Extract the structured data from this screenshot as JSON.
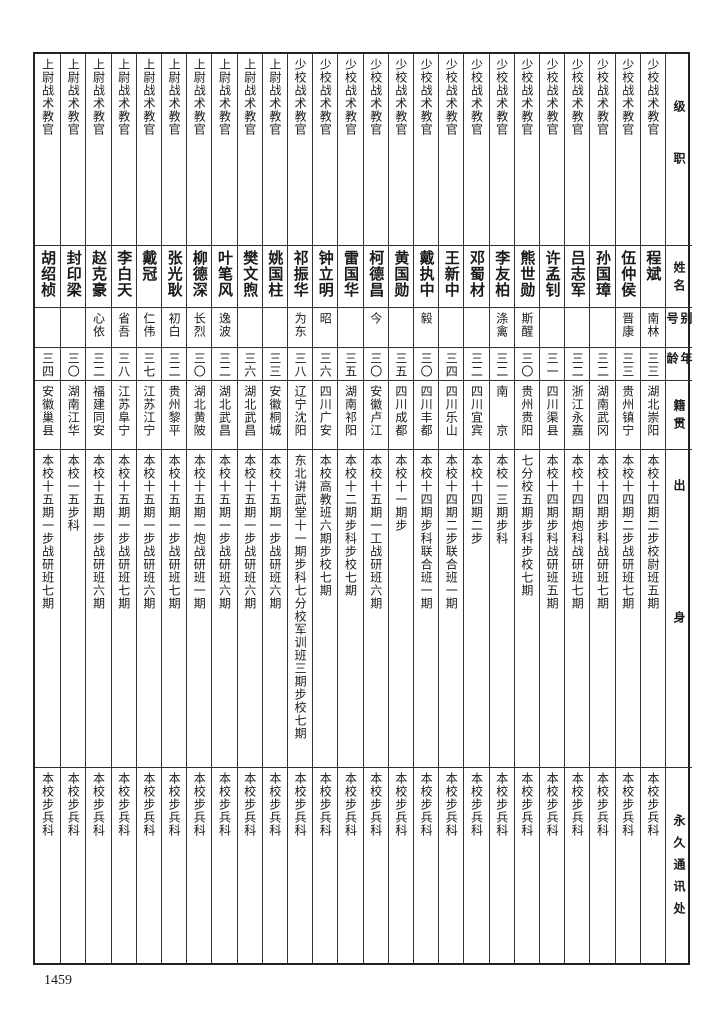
{
  "header": {
    "rank": "级职",
    "name": "姓名",
    "alias": "别号",
    "age": "年龄",
    "native": "籍贯",
    "origin": "出身",
    "address": "永久通讯处"
  },
  "rows": [
    {
      "rank": "少校战术教官",
      "name": "程斌",
      "alias": "南林",
      "age": "三三",
      "native": "湖北崇阳",
      "origin": "本校十四期二步校尉班五期",
      "address": "本校步兵科"
    },
    {
      "rank": "少校战术教官",
      "name": "伍仲侯",
      "alias": "晋康",
      "age": "三三",
      "native": "贵州镇宁",
      "origin": "本校十四期二步战研班七期",
      "address": "本校步兵科"
    },
    {
      "rank": "少校战术教官",
      "name": "孙国璋",
      "alias": "",
      "age": "三二",
      "native": "湖南武冈",
      "origin": "本校十四期步科战研班七期",
      "address": "本校步兵科"
    },
    {
      "rank": "少校战术教官",
      "name": "吕志军",
      "alias": "",
      "age": "三二",
      "native": "浙江永嘉",
      "origin": "本校十四期炮科战研班七期",
      "address": "本校步兵科"
    },
    {
      "rank": "少校战术教官",
      "name": "许孟钊",
      "alias": "",
      "age": "三一",
      "native": "四川渠县",
      "origin": "本校十四期步科战研班五期",
      "address": "本校步兵科"
    },
    {
      "rank": "少校战术教官",
      "name": "熊世勋",
      "alias": "斯醒",
      "age": "三〇",
      "native": "贵州贵阳",
      "origin": "七分校五期步科步校七期",
      "address": "本校步兵科"
    },
    {
      "rank": "少校战术教官",
      "name": "李友柏",
      "alias": "涤禽",
      "age": "三二",
      "native": "南　　京",
      "origin": "本校一三期步科",
      "address": "本校步兵科"
    },
    {
      "rank": "少校战术教官",
      "name": "邓蜀材",
      "alias": "",
      "age": "三二",
      "native": "四川宜宾",
      "origin": "本校十四期二步",
      "address": "本校步兵科"
    },
    {
      "rank": "少校战术教官",
      "name": "王新中",
      "alias": "",
      "age": "三四",
      "native": "四川乐山",
      "origin": "本校十四期二步联合班一期",
      "address": "本校步兵科"
    },
    {
      "rank": "少校战术教官",
      "name": "戴执中",
      "alias": "毅",
      "age": "三〇",
      "native": "四川丰都",
      "origin": "本校十四期步科联合班一期",
      "address": "本校步兵科"
    },
    {
      "rank": "少校战术教官",
      "name": "黄国勋",
      "alias": "",
      "age": "三五",
      "native": "四川成都",
      "origin": "本校十一期步",
      "address": "本校步兵科"
    },
    {
      "rank": "少校战术教官",
      "name": "柯德昌",
      "alias": "今",
      "age": "三〇",
      "native": "安徽卢江",
      "origin": "本校十五期一工战研班六期",
      "address": "本校步兵科"
    },
    {
      "rank": "少校战术教官",
      "name": "雷国华",
      "alias": "",
      "age": "三五",
      "native": "湖南祁阳",
      "origin": "本校十二期步科步校七期",
      "address": "本校步兵科"
    },
    {
      "rank": "少校战术教官",
      "name": "钟立明",
      "alias": "昭",
      "age": "三六",
      "native": "四川广安",
      "origin": "本校高教班六期步校七期",
      "address": "本校步兵科"
    },
    {
      "rank": "少校战术教官",
      "name": "祁振华",
      "alias": "为东",
      "age": "三八",
      "native": "辽宁沈阳",
      "origin": "东北讲武堂十一期步科七分校军训班三期步校七期",
      "address": "本校步兵科"
    },
    {
      "rank": "上尉战术教官",
      "name": "姚国柱",
      "alias": "",
      "age": "三三",
      "native": "安徽桐城",
      "origin": "本校十五期一步战研班六期",
      "address": "本校步兵科"
    },
    {
      "rank": "上尉战术教官",
      "name": "樊文煦",
      "alias": "",
      "age": "三六",
      "native": "湖北武昌",
      "origin": "本校十五期一步战研班六期",
      "address": "本校步兵科"
    },
    {
      "rank": "上尉战术教官",
      "name": "叶笔风",
      "alias": "逸波",
      "age": "三二",
      "native": "湖北武昌",
      "origin": "本校十五期一步战研班六期",
      "address": "本校步兵科"
    },
    {
      "rank": "上尉战术教官",
      "name": "柳德深",
      "alias": "长烈",
      "age": "三〇",
      "native": "湖北黄陂",
      "origin": "本校十五期一炮战研班一期",
      "address": "本校步兵科"
    },
    {
      "rank": "上尉战术教官",
      "name": "张光耿",
      "alias": "初白",
      "age": "三二",
      "native": "贵州黎平",
      "origin": "本校十五期一步战研班七期",
      "address": "本校步兵科"
    },
    {
      "rank": "上尉战术教官",
      "name": "戴冠",
      "alias": "仁伟",
      "age": "三七",
      "native": "江苏江宁",
      "origin": "本校十五期一步战研班六期",
      "address": "本校步兵科"
    },
    {
      "rank": "上尉战术教官",
      "name": "李白天",
      "alias": "省吾",
      "age": "三八",
      "native": "江苏阜宁",
      "origin": "本校十五期一步战研班七期",
      "address": "本校步兵科"
    },
    {
      "rank": "上尉战术教官",
      "name": "赵克豪",
      "alias": "心依",
      "age": "三二",
      "native": "福建同安",
      "origin": "本校十五期一步战研班六期",
      "address": "本校步兵科"
    },
    {
      "rank": "上尉战术教官",
      "name": "封印梁",
      "alias": "",
      "age": "三〇",
      "native": "湖南江华",
      "origin": "本校一五步科",
      "address": "本校步兵科"
    },
    {
      "rank": "上尉战术教官",
      "name": "胡绍桢",
      "alias": "",
      "age": "三四",
      "native": "安徽巢县",
      "origin": "本校十五期一步战研班七期",
      "address": "本校步兵科"
    }
  ],
  "page_number": "1459"
}
